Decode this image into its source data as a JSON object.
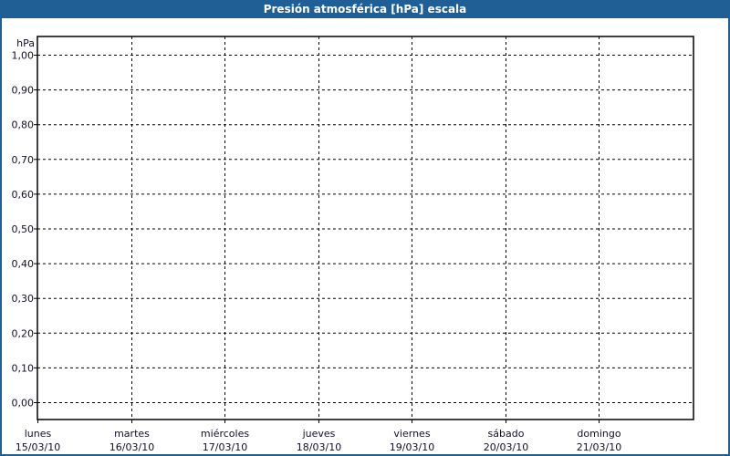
{
  "title": "Presión atmosférica [hPa] escala",
  "colors": {
    "title_bar": "#1f5f96",
    "grid": "#000000"
  },
  "chart_data": {
    "type": "line",
    "title": "Presión atmosférica [hPa] escala",
    "ylabel": "hPa",
    "ylim": [
      0,
      1.0
    ],
    "yticks": [
      "0,00",
      "0,10",
      "0,20",
      "0,30",
      "0,40",
      "0,50",
      "0,60",
      "0,70",
      "0,80",
      "0,90",
      "1,00"
    ],
    "categories": [
      {
        "day": "lunes",
        "date": "15/03/10"
      },
      {
        "day": "martes",
        "date": "16/03/10"
      },
      {
        "day": "miércoles",
        "date": "17/03/10"
      },
      {
        "day": "jueves",
        "date": "18/03/10"
      },
      {
        "day": "viernes",
        "date": "19/03/10"
      },
      {
        "day": "sábado",
        "date": "20/03/10"
      },
      {
        "day": "domingo",
        "date": "21/03/10"
      }
    ],
    "series": [],
    "grid": true,
    "grid_style": "dashed"
  }
}
